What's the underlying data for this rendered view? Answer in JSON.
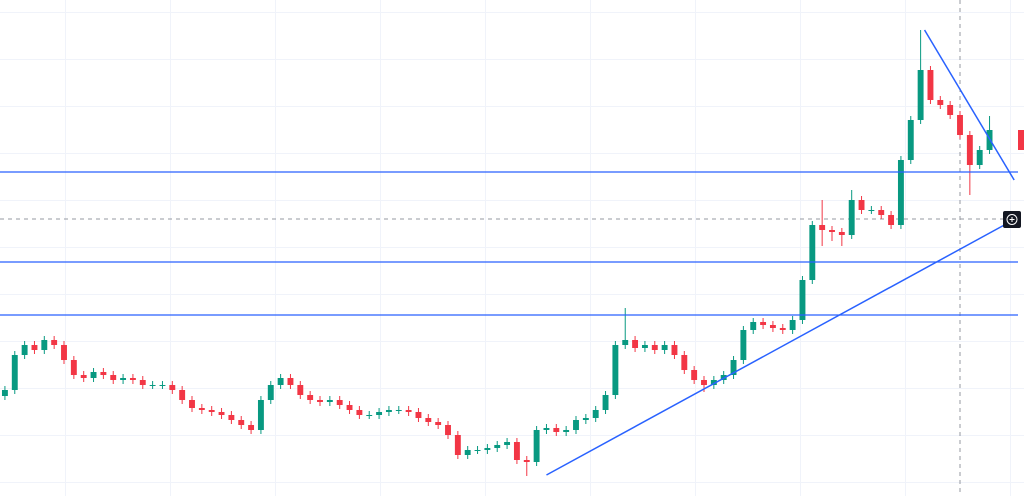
{
  "chart_data": {
    "type": "candlestick",
    "up_color": "#089981",
    "down_color": "#f23645",
    "line_color": "#2962ff",
    "xlim": [
      -0.5,
      103.5
    ],
    "ylim": [
      0,
      496
    ],
    "open": [
      100,
      106,
      141,
      151,
      146,
      156,
      151,
      136,
      121,
      118,
      124,
      121,
      116,
      118,
      116,
      111,
      111,
      111,
      106,
      96,
      88,
      86,
      84,
      81,
      76,
      71,
      66,
      96,
      111,
      118,
      111,
      101,
      96,
      94,
      96,
      91,
      86,
      81,
      81,
      84,
      86,
      86,
      84,
      78,
      74,
      71,
      61,
      41,
      46,
      46,
      48,
      51,
      54,
      36,
      34,
      66,
      68,
      64,
      66,
      76,
      78,
      86,
      101,
      151,
      156,
      148,
      151,
      146,
      151,
      141,
      126,
      116,
      111,
      116,
      121,
      136,
      166,
      174,
      171,
      168,
      166,
      176,
      216,
      271,
      266,
      264,
      261,
      296,
      286,
      286,
      281,
      271,
      336,
      376,
      426,
      396,
      391,
      381,
      361,
      331,
      346
    ],
    "high": [
      110,
      145,
      155,
      155,
      160,
      160,
      155,
      140,
      125,
      128,
      128,
      125,
      122,
      122,
      120,
      115,
      115,
      115,
      110,
      100,
      92,
      90,
      88,
      85,
      80,
      75,
      100,
      115,
      122,
      122,
      115,
      105,
      100,
      100,
      100,
      95,
      90,
      85,
      88,
      90,
      90,
      90,
      88,
      82,
      78,
      75,
      65,
      50,
      50,
      52,
      55,
      58,
      58,
      40,
      70,
      72,
      72,
      70,
      80,
      82,
      90,
      105,
      155,
      188,
      160,
      155,
      155,
      155,
      155,
      145,
      130,
      120,
      120,
      125,
      140,
      170,
      178,
      178,
      175,
      172,
      180,
      220,
      275,
      296,
      270,
      268,
      306,
      300,
      290,
      290,
      285,
      340,
      380,
      466,
      430,
      400,
      395,
      385,
      365,
      350,
      380
    ],
    "low": [
      96,
      102,
      137,
      142,
      142,
      147,
      132,
      117,
      114,
      114,
      117,
      112,
      112,
      112,
      107,
      107,
      107,
      102,
      92,
      84,
      82,
      80,
      77,
      72,
      67,
      62,
      62,
      92,
      107,
      107,
      97,
      92,
      90,
      90,
      87,
      82,
      77,
      77,
      77,
      80,
      82,
      80,
      74,
      70,
      67,
      57,
      37,
      37,
      42,
      42,
      44,
      47,
      32,
      20,
      30,
      62,
      60,
      60,
      62,
      72,
      74,
      82,
      97,
      147,
      144,
      144,
      142,
      142,
      137,
      122,
      112,
      104,
      107,
      112,
      117,
      132,
      162,
      167,
      164,
      162,
      162,
      172,
      212,
      250,
      255,
      250,
      257,
      282,
      282,
      277,
      267,
      267,
      332,
      372,
      392,
      387,
      377,
      357,
      301,
      327,
      342
    ],
    "close": [
      106,
      141,
      151,
      146,
      156,
      151,
      136,
      121,
      118,
      124,
      121,
      116,
      118,
      116,
      111,
      111,
      111,
      106,
      96,
      88,
      86,
      84,
      81,
      76,
      71,
      66,
      96,
      111,
      118,
      111,
      101,
      96,
      94,
      96,
      91,
      86,
      81,
      81,
      84,
      86,
      86,
      84,
      78,
      74,
      71,
      61,
      41,
      46,
      46,
      48,
      51,
      54,
      36,
      34,
      66,
      68,
      64,
      66,
      76,
      78,
      86,
      101,
      151,
      156,
      148,
      151,
      146,
      151,
      141,
      126,
      116,
      111,
      116,
      121,
      136,
      166,
      174,
      171,
      168,
      166,
      176,
      216,
      271,
      266,
      264,
      261,
      296,
      286,
      286,
      281,
      271,
      336,
      376,
      426,
      396,
      391,
      381,
      361,
      331,
      346,
      366
    ],
    "hlines": [
      324,
      234,
      181
    ],
    "trendlines": [
      {
        "x": [
          55,
          101.5
        ],
        "y": [
          21,
          271
        ]
      },
      {
        "x": [
          93.4,
          102.5
        ],
        "y": [
          466,
          316
        ]
      }
    ],
    "crosshair": {
      "x": 97,
      "y": 277
    }
  }
}
